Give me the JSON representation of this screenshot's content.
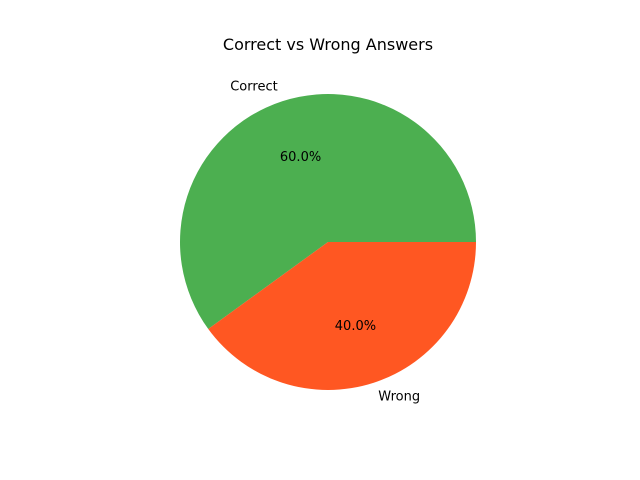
{
  "chart_data": {
    "type": "pie",
    "title": "Correct vs Wrong Answers",
    "slices": [
      {
        "label": "Correct",
        "value": 60,
        "pct_label": "60.0%",
        "color": "#4CAF50"
      },
      {
        "label": "Wrong",
        "value": 40,
        "pct_label": "40.0%",
        "color": "#FF5722"
      }
    ]
  }
}
